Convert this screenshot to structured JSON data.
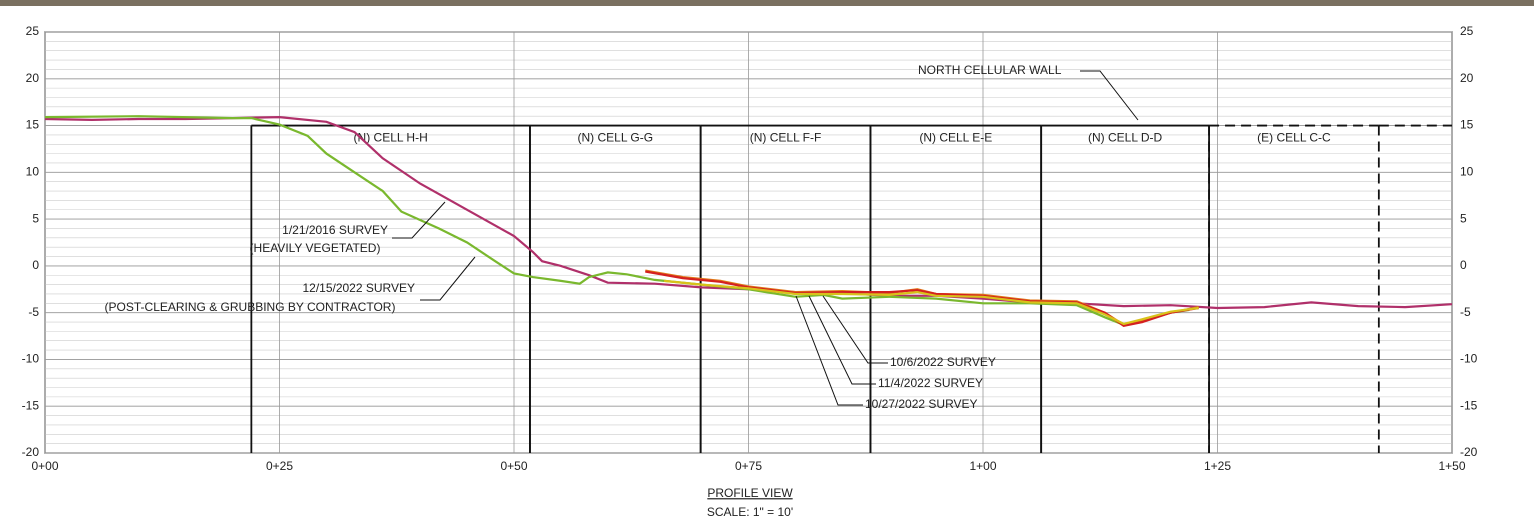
{
  "chart_data": {
    "type": "line",
    "title": "PROFILE VIEW",
    "subtitle": "SCALE: 1\" = 10'",
    "xlim": [
      0,
      150
    ],
    "ylim": [
      -20,
      25
    ],
    "xticks": [
      {
        "value": 0,
        "label": "0+00"
      },
      {
        "value": 25,
        "label": "0+25"
      },
      {
        "value": 50,
        "label": "0+50"
      },
      {
        "value": 75,
        "label": "0+75"
      },
      {
        "value": 100,
        "label": "1+00"
      },
      {
        "value": 125,
        "label": "1+25"
      },
      {
        "value": 150,
        "label": "1+50"
      }
    ],
    "yticks": [
      -20,
      -15,
      -10,
      -5,
      0,
      5,
      10,
      15,
      20,
      25
    ],
    "grid": true,
    "wall_label": "NORTH CELLULAR WALL",
    "wall_top": 15,
    "cells": [
      {
        "label": "(N) CELL H-H",
        "start": 22,
        "end": 51.7
      },
      {
        "label": "(N) CELL G-G",
        "start": 51.7,
        "end": 69.9
      },
      {
        "label": "(N) CELL F-F",
        "start": 69.9,
        "end": 88
      },
      {
        "label": "(N) CELL E-E",
        "start": 88,
        "end": 106.2
      },
      {
        "label": "(N) CELL D-D",
        "start": 106.2,
        "end": 124.1
      },
      {
        "label": "(E) CELL C-C",
        "start": 124.1,
        "end": 142.2
      }
    ],
    "series": [
      {
        "name": "1/21/2016 SURVEY",
        "note": "(HEAVILY VEGETATED)",
        "color": "#b0306a",
        "x": [
          0,
          5,
          10,
          15,
          20,
          25,
          30,
          33,
          36,
          40,
          45,
          50,
          52,
          53,
          55,
          58,
          60,
          65,
          70,
          75,
          80,
          85,
          90,
          95,
          100,
          105,
          110,
          115,
          120,
          125,
          130,
          135,
          140,
          145,
          150
        ],
        "values": [
          15.7,
          15.6,
          15.7,
          15.7,
          15.8,
          15.9,
          15.4,
          14.3,
          11.5,
          8.8,
          6,
          3.2,
          1.5,
          0.5,
          0,
          -1,
          -1.8,
          -1.9,
          -2.3,
          -2.5,
          -2.8,
          -2.9,
          -3.2,
          -3.2,
          -3.5,
          -3.9,
          -4,
          -4.3,
          -4.2,
          -4.5,
          -4.4,
          -3.9,
          -4.3,
          -4.4,
          -4.1
        ]
      },
      {
        "name": "12/15/2022 SURVEY",
        "note": "(POST-CLEARING & GRUBBING BY CONTRACTOR)",
        "color": "#7ab82e",
        "x": [
          0,
          10,
          20,
          22,
          25,
          28,
          30,
          33,
          36,
          38,
          42,
          45,
          48,
          50,
          52,
          55,
          57,
          58,
          60,
          62,
          65,
          70,
          75,
          80,
          83,
          85,
          90,
          95,
          100,
          105,
          110,
          113,
          115,
          117,
          120,
          122
        ],
        "values": [
          15.9,
          16,
          15.8,
          15.8,
          15.1,
          13.9,
          12,
          10,
          8,
          5.8,
          4,
          2.5,
          0.5,
          -0.8,
          -1.2,
          -1.6,
          -1.9,
          -1.2,
          -0.7,
          -0.9,
          -1.5,
          -2,
          -2.5,
          -3.3,
          -3.1,
          -3.5,
          -3.3,
          -3.5,
          -4,
          -4,
          -4.2,
          -5.5,
          -6.3,
          -5.8,
          -5,
          -4.7
        ]
      },
      {
        "name": "10/6/2022 SURVEY",
        "color": "#e07a1a",
        "x": [
          64,
          68,
          72,
          75,
          80,
          85,
          90,
          93,
          95,
          100,
          105,
          110,
          113,
          115,
          117,
          120,
          123
        ],
        "values": [
          -0.5,
          -1.2,
          -1.6,
          -2.2,
          -2.8,
          -2.7,
          -2.9,
          -2.5,
          -3,
          -3.1,
          -3.7,
          -3.8,
          -5,
          -6.3,
          -5.9,
          -5,
          -4.4
        ]
      },
      {
        "name": "11/4/2022 SURVEY",
        "color": "#d42020",
        "x": [
          64,
          68,
          72,
          75,
          80,
          85,
          90,
          93,
          95,
          100,
          105,
          110,
          113,
          115,
          117,
          120,
          123
        ],
        "values": [
          -0.6,
          -1.3,
          -1.7,
          -2.3,
          -2.9,
          -2.8,
          -2.8,
          -2.6,
          -3,
          -3.2,
          -3.8,
          -3.9,
          -5,
          -6.4,
          -6,
          -5,
          -4.5
        ]
      },
      {
        "name": "10/27/2022 SURVEY",
        "color": "#d8c21a",
        "x": [
          66,
          70,
          75,
          80,
          85,
          90,
          93,
          95,
          100,
          105,
          110,
          113,
          115,
          117,
          120,
          123
        ],
        "values": [
          -1.6,
          -2,
          -2.4,
          -3,
          -3,
          -3.1,
          -2.8,
          -3.2,
          -3.3,
          -3.9,
          -4,
          -5.2,
          -6.2,
          -5.7,
          -4.9,
          -4.5
        ]
      }
    ]
  }
}
